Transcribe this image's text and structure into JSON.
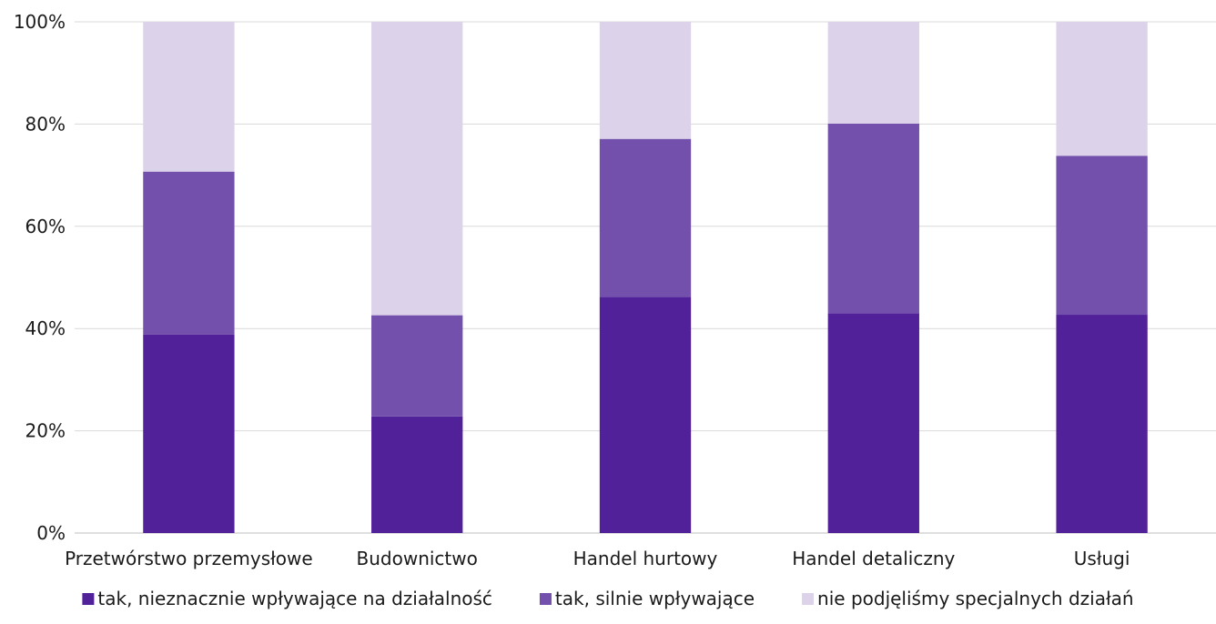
{
  "chart_data": {
    "type": "bar",
    "stacked": true,
    "categories": [
      "Przetwórstwo przemysłowe",
      "Budownictwo",
      "Handel hurtowy",
      "Handel detaliczny",
      "Usługi"
    ],
    "series": [
      {
        "name": "tak, nieznacznie wpływające na działalność",
        "color": "#512199",
        "values": [
          38.8,
          22.8,
          46.2,
          43.0,
          42.7
        ]
      },
      {
        "name": "tak, silnie wpływające",
        "color": "#7350ab",
        "values": [
          31.9,
          19.8,
          30.9,
          37.1,
          31.1
        ]
      },
      {
        "name": "nie podjęliśmy specjalnych działań",
        "color": "#dcd3ea",
        "values": [
          29.3,
          57.4,
          22.9,
          19.9,
          26.2
        ]
      }
    ],
    "ylim": [
      0,
      100
    ],
    "yticks": [
      "0%",
      "20%",
      "40%",
      "60%",
      "80%",
      "100%"
    ],
    "grid": true,
    "legend": "bottom"
  }
}
